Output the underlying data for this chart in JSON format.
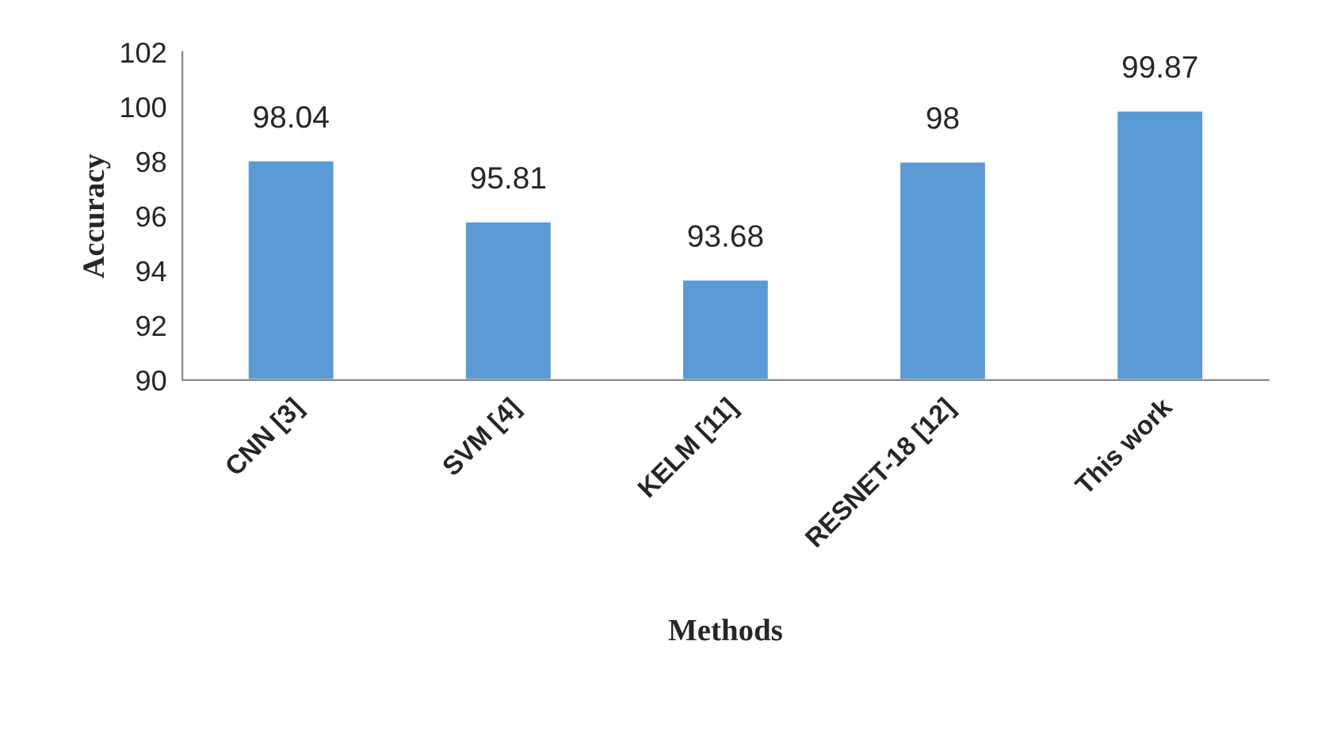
{
  "chart_data": {
    "type": "bar",
    "xlabel": "Methods",
    "ylabel": "Accuracy",
    "categories": [
      "CNN [3]",
      "SVM [4]",
      "KELM [11]",
      "RESNET-18 [12]",
      "This work"
    ],
    "values": [
      98.04,
      95.81,
      93.68,
      98,
      99.87
    ],
    "color": "#5b9bd5",
    "ylim": [
      90,
      102
    ],
    "yticks": [
      90,
      92,
      94,
      96,
      98,
      100,
      102
    ],
    "grid": false,
    "data_labels": true
  }
}
